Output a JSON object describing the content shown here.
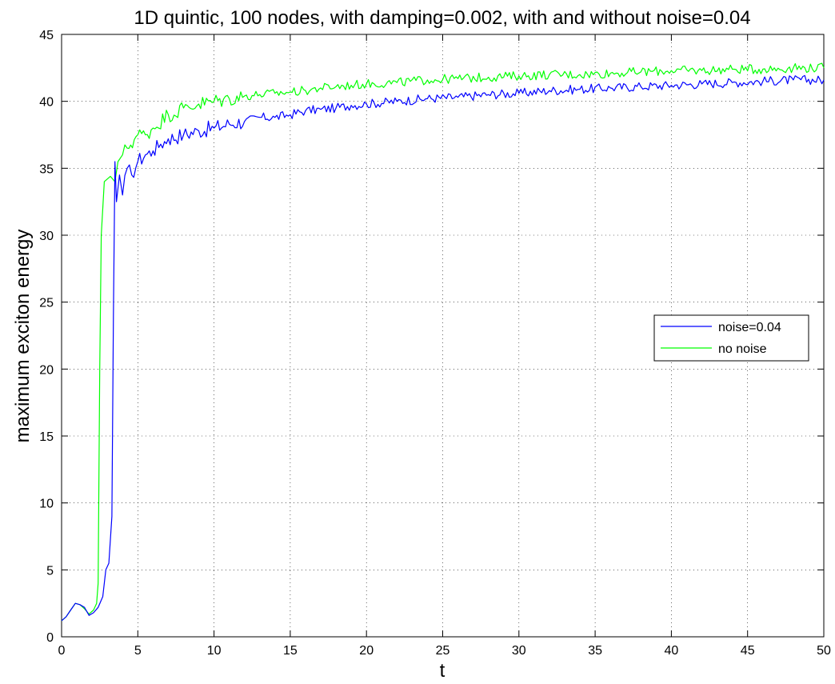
{
  "chart_data": {
    "type": "line",
    "title": "1D quintic, 100 nodes, with damping=0.002, with and without noise=0.04",
    "xlabel": "t",
    "ylabel": "maximum exciton energy",
    "xlim": [
      0,
      50
    ],
    "ylim": [
      0,
      45
    ],
    "xticks": [
      "0",
      "5",
      "10",
      "15",
      "20",
      "25",
      "30",
      "35",
      "40",
      "45",
      "50"
    ],
    "yticks": [
      "0",
      "5",
      "10",
      "15",
      "20",
      "25",
      "30",
      "35",
      "40",
      "45"
    ],
    "grid": true,
    "legend_position": "right",
    "series": [
      {
        "name": "noise=0.04",
        "color": "#0000ff",
        "points": [
          [
            0,
            1.2
          ],
          [
            0.3,
            1.5
          ],
          [
            0.6,
            2.0
          ],
          [
            0.9,
            2.5
          ],
          [
            1.2,
            2.4
          ],
          [
            1.5,
            2.2
          ],
          [
            1.8,
            1.6
          ],
          [
            2.1,
            1.8
          ],
          [
            2.4,
            2.2
          ],
          [
            2.7,
            3.0
          ],
          [
            2.9,
            5.0
          ],
          [
            3.1,
            5.5
          ],
          [
            3.3,
            9.0
          ],
          [
            3.4,
            24.0
          ],
          [
            3.5,
            35.5
          ],
          [
            3.6,
            32.5
          ],
          [
            3.8,
            34.5
          ],
          [
            4.0,
            33.0
          ],
          [
            4.3,
            35.0
          ],
          [
            4.6,
            34.5
          ],
          [
            5.0,
            35.5
          ],
          [
            5.5,
            36.0
          ],
          [
            6.0,
            36.3
          ],
          [
            6.5,
            36.8
          ],
          [
            7.0,
            37.2
          ],
          [
            8.0,
            37.5
          ],
          [
            9.0,
            37.8
          ],
          [
            10.0,
            38.0
          ],
          [
            11.0,
            38.3
          ],
          [
            12.0,
            38.5
          ],
          [
            13.0,
            38.8
          ],
          [
            14.0,
            38.8
          ],
          [
            15.0,
            39.0
          ],
          [
            16.0,
            39.3
          ],
          [
            17.0,
            39.4
          ],
          [
            18.0,
            39.5
          ],
          [
            19.0,
            39.7
          ],
          [
            20.0,
            39.8
          ],
          [
            22.0,
            40.0
          ],
          [
            24.0,
            40.2
          ],
          [
            26.0,
            40.3
          ],
          [
            28.0,
            40.5
          ],
          [
            30.0,
            40.6
          ],
          [
            32.0,
            40.8
          ],
          [
            34.0,
            40.9
          ],
          [
            36.0,
            41.0
          ],
          [
            38.0,
            41.1
          ],
          [
            40.0,
            41.2
          ],
          [
            42.0,
            41.3
          ],
          [
            44.0,
            41.4
          ],
          [
            46.0,
            41.5
          ],
          [
            48.0,
            41.6
          ],
          [
            50.0,
            41.6
          ]
        ]
      },
      {
        "name": "no noise",
        "color": "#00ff00",
        "points": [
          [
            0,
            1.2
          ],
          [
            0.3,
            1.5
          ],
          [
            0.6,
            2.0
          ],
          [
            0.9,
            2.5
          ],
          [
            1.2,
            2.4
          ],
          [
            1.5,
            2.1
          ],
          [
            1.8,
            1.7
          ],
          [
            2.1,
            2.0
          ],
          [
            2.3,
            2.5
          ],
          [
            2.4,
            4.0
          ],
          [
            2.5,
            20.0
          ],
          [
            2.6,
            30.0
          ],
          [
            2.8,
            34.0
          ],
          [
            3.2,
            34.4
          ],
          [
            3.5,
            34.0
          ],
          [
            3.7,
            35.5
          ],
          [
            4.0,
            36.0
          ],
          [
            4.3,
            36.5
          ],
          [
            5.0,
            37.5
          ],
          [
            5.5,
            37.5
          ],
          [
            6.0,
            38.0
          ],
          [
            7.0,
            39.0
          ],
          [
            8.0,
            39.5
          ],
          [
            9.0,
            39.8
          ],
          [
            10.0,
            40.0
          ],
          [
            11.0,
            40.2
          ],
          [
            12.0,
            40.4
          ],
          [
            13.0,
            40.5
          ],
          [
            14.0,
            40.6
          ],
          [
            15.0,
            40.7
          ],
          [
            16.0,
            40.8
          ],
          [
            17.0,
            41.0
          ],
          [
            18.0,
            41.1
          ],
          [
            19.0,
            41.2
          ],
          [
            20.0,
            41.3
          ],
          [
            22.0,
            41.4
          ],
          [
            24.0,
            41.6
          ],
          [
            26.0,
            41.7
          ],
          [
            28.0,
            41.8
          ],
          [
            30.0,
            41.9
          ],
          [
            32.0,
            42.0
          ],
          [
            34.0,
            42.0
          ],
          [
            36.0,
            42.1
          ],
          [
            38.0,
            42.2
          ],
          [
            40.0,
            42.3
          ],
          [
            42.0,
            42.3
          ],
          [
            44.0,
            42.4
          ],
          [
            46.0,
            42.4
          ],
          [
            48.0,
            42.5
          ],
          [
            50.0,
            42.5
          ]
        ]
      }
    ]
  }
}
